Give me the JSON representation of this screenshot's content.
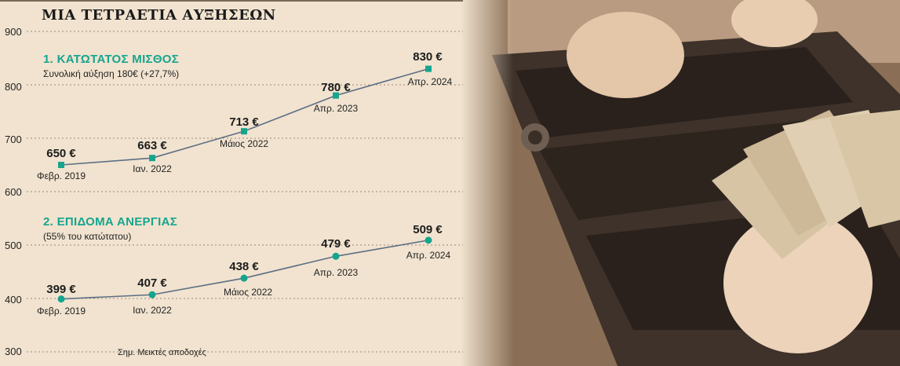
{
  "title": "ΜΙΑ ΤΕΤΡΑΕΤΙΑ ΑΥΞΗΣΕΩΝ",
  "note": "Σημ. Μεικτές αποδοχές",
  "colors": {
    "accent": "#15a58f",
    "line": "#5d6f84",
    "grid": "#9a8b78",
    "background": "#f1e3cf"
  },
  "chart_data": {
    "type": "line",
    "ylim": [
      300,
      900
    ],
    "yticks": [
      "900",
      "800",
      "700",
      "600",
      "500",
      "400",
      "300"
    ],
    "grid": true,
    "series": [
      {
        "name": "1. ΚΑΤΩΤΑΤΟΣ ΜΙΣΘΟΣ",
        "subtitle": "Συνολική αύξηση 180€ (+27,7%)",
        "marker": "square",
        "x": [
          "Φεβρ. 2019",
          "Ιαν. 2022",
          "Μάιος 2022",
          "Απρ. 2023",
          "Απρ. 2024"
        ],
        "values": [
          650,
          663,
          713,
          780,
          830
        ],
        "labels": [
          "650 €",
          "663 €",
          "713 €",
          "780 €",
          "830 €"
        ]
      },
      {
        "name": "2. ΕΠΙΔΟΜΑ ΑΝΕΡΓΙΑΣ",
        "subtitle": "(55% του κατώτατου)",
        "marker": "circle",
        "x": [
          "Φεβρ. 2019",
          "Ιαν. 2022",
          "Μάιος 2022",
          "Απρ. 2023",
          "Απρ. 2024"
        ],
        "values": [
          399,
          407,
          438,
          479,
          509
        ],
        "labels": [
          "399 €",
          "407 €",
          "438 €",
          "479 €",
          "509 €"
        ]
      }
    ]
  },
  "photo": {
    "description_icon": "cash-register-euro-banknotes-photo"
  }
}
